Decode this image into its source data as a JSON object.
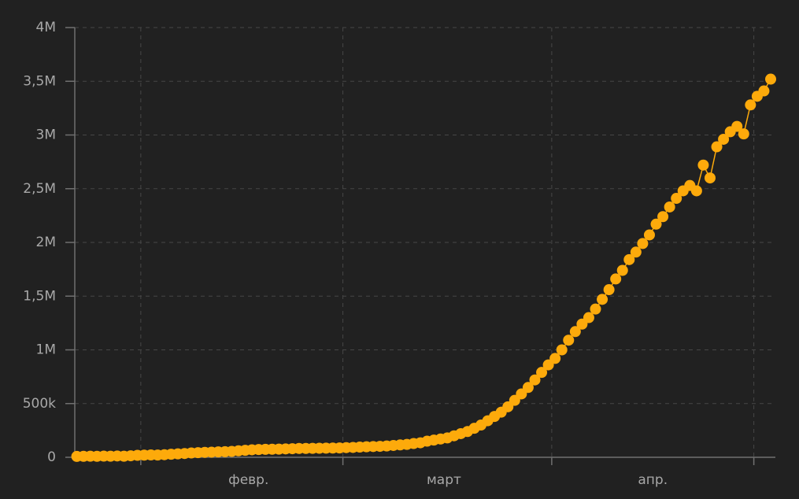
{
  "chart_data": {
    "type": "line",
    "x": [
      0,
      1,
      2,
      3,
      4,
      5,
      6,
      7,
      8,
      9,
      10,
      11,
      12,
      13,
      14,
      15,
      16,
      17,
      18,
      19,
      20,
      21,
      22,
      23,
      24,
      25,
      26,
      27,
      28,
      29,
      30,
      31,
      32,
      33,
      34,
      35,
      36,
      37,
      38,
      39,
      40,
      41,
      42,
      43,
      44,
      45,
      46,
      47,
      48,
      49,
      50,
      51,
      52,
      53,
      54,
      55,
      56,
      57,
      58,
      59,
      60,
      61,
      62,
      63,
      64,
      65,
      66,
      67,
      68,
      69,
      70,
      71,
      72,
      73,
      74,
      75,
      76,
      77,
      78,
      79,
      80,
      81,
      82,
      83,
      84,
      85,
      86,
      87,
      88,
      89,
      90,
      91,
      92,
      93,
      94,
      95,
      96,
      97,
      98,
      99,
      100,
      101,
      102,
      103
    ],
    "series": [
      {
        "color": "#fdaa0b",
        "values": [
          8000,
          9000,
          10000,
          9000,
          11000,
          10000,
          12000,
          10000,
          14000,
          18000,
          20000,
          22000,
          21000,
          24000,
          28000,
          32000,
          35000,
          40000,
          43000,
          46000,
          48000,
          50000,
          52000,
          55000,
          60000,
          65000,
          70000,
          72000,
          74000,
          75000,
          76000,
          78000,
          80000,
          82000,
          82000,
          83000,
          84000,
          85000,
          86000,
          87000,
          90000,
          92000,
          95000,
          98000,
          100000,
          102000,
          105000,
          110000,
          115000,
          120000,
          128000,
          135000,
          150000,
          160000,
          170000,
          180000,
          200000,
          220000,
          240000,
          270000,
          300000,
          340000,
          380000,
          420000,
          470000,
          530000,
          590000,
          650000,
          720000,
          790000,
          860000,
          920000,
          1000000,
          1090000,
          1170000,
          1240000,
          1300000,
          1380000,
          1470000,
          1560000,
          1660000,
          1740000,
          1840000,
          1910000,
          1990000,
          2070000,
          2170000,
          2240000,
          2330000,
          2410000,
          2480000,
          2530000,
          2480000,
          2720000,
          2600000,
          2890000,
          2960000,
          3030000,
          3080000,
          3010000,
          3280000,
          3360000,
          3410000,
          3520000
        ]
      }
    ],
    "xlim": [
      -0.3,
      103.7
    ],
    "xticks": [
      {
        "value": 25.5,
        "label": "февр."
      },
      {
        "value": 54.5,
        "label": "март"
      },
      {
        "value": 85.5,
        "label": "апр."
      }
    ],
    "xgrid": [
      9.5,
      39.5,
      70.5,
      100.5
    ],
    "ylim": [
      0,
      4000000
    ],
    "yticks": [
      0,
      {
        "value": 500000,
        "label": "500k"
      },
      {
        "value": 1000000,
        "label": "1M"
      },
      {
        "value": 1500000,
        "label": "1,5M"
      },
      {
        "value": 2000000,
        "label": "2M"
      },
      {
        "value": 2500000,
        "label": "2,5M"
      },
      {
        "value": 3000000,
        "label": "3M"
      },
      {
        "value": 3500000,
        "label": "3,5M"
      },
      {
        "value": 4000000,
        "label": "4M"
      }
    ],
    "grid": true
  }
}
